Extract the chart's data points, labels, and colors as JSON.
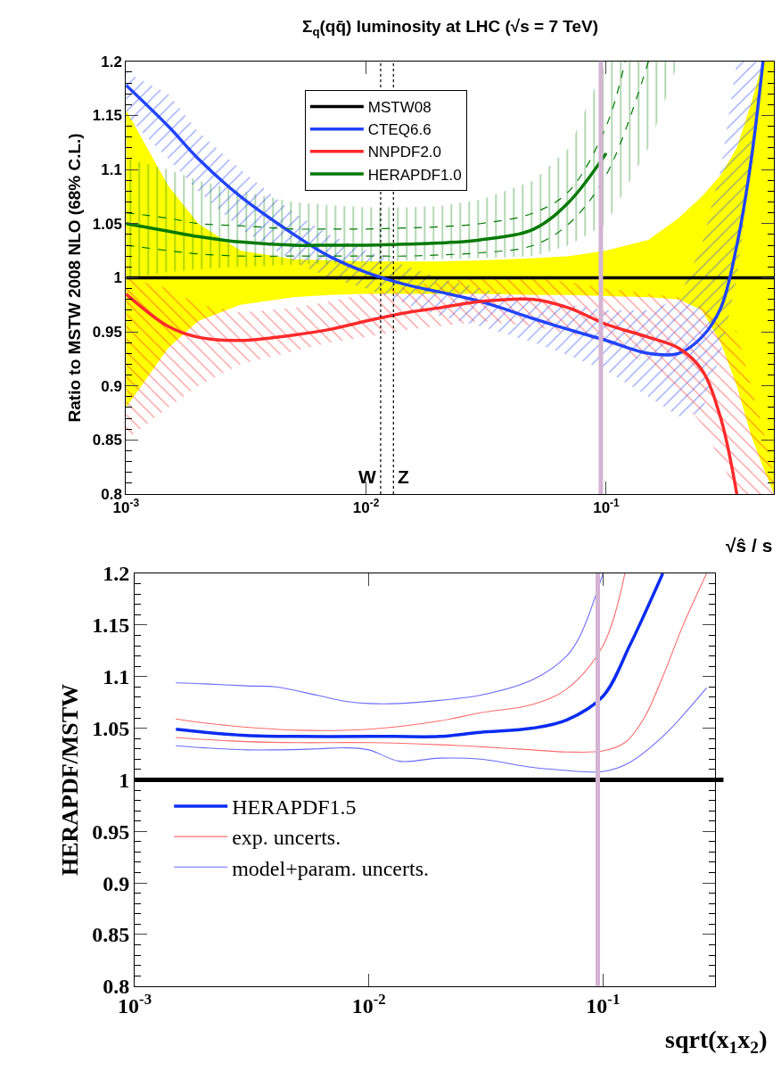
{
  "chart_data": [
    {
      "type": "line",
      "title": "Σ$_{q}$(qq̄) luminosity at LHC (√s = 7 TeV)",
      "xlabel": "√ŝ / s",
      "ylabel": "Ratio to MSTW 2008 NLO (68% C.L.)",
      "log": "x",
      "legend": "top",
      "marker": "none",
      "xlim": [
        0.001,
        0.5
      ],
      "xticks": [
        {
          "value": 0.001,
          "label": "10$^{-3}$"
        },
        {
          "value": 0.01,
          "label": "10$^{-2}$"
        },
        {
          "value": 0.1,
          "label": "10$^{-1}$"
        }
      ],
      "ylim": [
        0.8,
        1.2
      ],
      "yticks": [
        0.8,
        0.85,
        0.9,
        0.95,
        1,
        1.05,
        1.1,
        1.15,
        1.2
      ],
      "x": [
        0.001,
        0.0015,
        0.002,
        0.003,
        0.005,
        0.007,
        0.01,
        0.015,
        0.02,
        0.03,
        0.05,
        0.07,
        0.1,
        0.15,
        0.2,
        0.25,
        0.3,
        0.35,
        0.4,
        0.45,
        0.5
      ],
      "series": [
        {
          "name": "MSTW08",
          "color": "#000000",
          "values": [
            1,
            1,
            1,
            1,
            1,
            1,
            1,
            1,
            1,
            1,
            1,
            1,
            1,
            1,
            1,
            1,
            1,
            1,
            1,
            1,
            1
          ],
          "upper": [
            1.155,
            1.085,
            1.05,
            1.025,
            1.017,
            1.016,
            1.015,
            1.015,
            1.015,
            1.016,
            1.018,
            1.02,
            1.025,
            1.035,
            1.055,
            1.075,
            1.095,
            1.12,
            1.16,
            1.2,
            1.2
          ],
          "lower": [
            0.88,
            0.935,
            0.96,
            0.975,
            0.982,
            0.984,
            0.985,
            0.985,
            0.985,
            0.985,
            0.984,
            0.984,
            0.983,
            0.982,
            0.98,
            0.97,
            0.94,
            0.9,
            0.855,
            0.825,
            0.8
          ]
        },
        {
          "name": "CTEQ6.6",
          "color": "#2244ff",
          "values": [
            1.178,
            1.14,
            1.11,
            1.075,
            1.04,
            1.02,
            1.005,
            0.993,
            0.987,
            0.978,
            0.962,
            0.952,
            0.942,
            0.93,
            0.93,
            0.945,
            0.972,
            1.03,
            1.106,
            1.2,
            null
          ],
          "upper": [
            1.19,
            1.17,
            1.135,
            1.1,
            1.06,
            1.04,
            1.025,
            1.01,
            1.0,
            0.99,
            0.98,
            0.975,
            0.97,
            0.97,
            0.98,
            1.03,
            1.1,
            1.2,
            1.2,
            1.2,
            null
          ],
          "lower": [
            1.15,
            1.11,
            1.08,
            1.045,
            1.015,
            1.0,
            0.99,
            0.975,
            0.965,
            0.955,
            0.94,
            0.928,
            0.914,
            0.89,
            0.872,
            0.875,
            0.93,
            1.0,
            1.1,
            1.2,
            null
          ]
        },
        {
          "name": "NNPDF2.0",
          "color": "#ff2a2a",
          "values": [
            0.985,
            0.955,
            0.945,
            0.942,
            0.947,
            0.952,
            0.96,
            0.968,
            0.972,
            0.978,
            0.98,
            0.972,
            0.957,
            0.945,
            0.935,
            0.915,
            0.87,
            0.8,
            null,
            null,
            null
          ],
          "upper": [
            1.0,
            0.99,
            0.975,
            0.968,
            0.972,
            0.978,
            0.985,
            0.992,
            0.996,
            1.0,
            1.0,
            0.996,
            0.99,
            0.985,
            0.982,
            0.972,
            0.96,
            0.95,
            0.9,
            0.86,
            0.815
          ],
          "lower": [
            0.85,
            0.88,
            0.9,
            0.92,
            0.932,
            0.94,
            0.945,
            0.952,
            0.955,
            0.96,
            0.955,
            0.948,
            0.94,
            0.92,
            0.89,
            0.865,
            0.83,
            0.8,
            0.8,
            0.8,
            0.8
          ]
        },
        {
          "name": "HERAPDF1.0",
          "color": "#007a00",
          "values": [
            1.05,
            1.043,
            1.038,
            1.033,
            1.03,
            1.03,
            1.03,
            1.031,
            1.032,
            1.035,
            1.045,
            1.07,
            1.115,
            null,
            null,
            null,
            null,
            null,
            null,
            null,
            null
          ],
          "upper": [
            1.11,
            1.1,
            1.09,
            1.08,
            1.07,
            1.067,
            1.065,
            1.065,
            1.066,
            1.072,
            1.09,
            1.12,
            1.2,
            1.2,
            1.2,
            null,
            null,
            null,
            null,
            null,
            null
          ],
          "lower": [
            1.0,
            1.005,
            1.008,
            1.01,
            1.012,
            1.013,
            1.014,
            1.016,
            1.017,
            1.018,
            1.02,
            1.03,
            1.05,
            1.12,
            1.2,
            null,
            null,
            null,
            null,
            null,
            null
          ]
        },
        {
          "color": "#007a00",
          "line_style": "dashed",
          "x": [
            0.001,
            0.0015,
            0.002,
            0.003,
            0.005,
            0.007,
            0.01,
            0.015,
            0.02,
            0.03,
            0.05,
            0.07,
            0.1,
            0.12
          ],
          "values": [
            1.06,
            1.055,
            1.05,
            1.048,
            1.045,
            1.045,
            1.045,
            1.046,
            1.047,
            1.05,
            1.06,
            1.08,
            1.14,
            1.2
          ]
        },
        {
          "color": "#007a00",
          "line_style": "dashed",
          "values": [
            1.03,
            1.025,
            1.022,
            1.02,
            1.02,
            1.02,
            1.02,
            1.02,
            1.021,
            1.023,
            1.03,
            1.05,
            1.095,
            1.2,
            null,
            null,
            null,
            null,
            null,
            null,
            null
          ]
        }
      ],
      "ref_lines": [
        {
          "axis": "x",
          "value": 0.0115,
          "label": "W",
          "color": "#000000",
          "line_style": "dotted"
        },
        {
          "axis": "x",
          "value": 0.013,
          "label": "Z",
          "color": "#000000",
          "line_style": "dotted"
        },
        {
          "axis": "x",
          "value": 0.095,
          "color": "#d4b4d2"
        }
      ]
    },
    {
      "type": "line",
      "xlabel": "sqrt(x$_{1}$x$_{2}$)",
      "ylabel": "HERAPDF/MSTW",
      "log": "x",
      "legend": "bottom left",
      "marker": "none",
      "xlim": [
        0.001,
        0.3
      ],
      "xticks": [
        {
          "value": 0.001,
          "label": "10$^{-3}$"
        },
        {
          "value": 0.01,
          "label": "10$^{-2}$"
        },
        {
          "value": 0.1,
          "label": "10$^{-1}$"
        }
      ],
      "ylim": [
        0.8,
        1.2
      ],
      "yticks": [
        0.8,
        0.85,
        0.9,
        0.95,
        1,
        1.05,
        1.1,
        1.15,
        1.2
      ],
      "series": [
        {
          "name": "HERAPDF1.5",
          "color": "#0a2cf0",
          "x": [
            0.0015,
            0.002,
            0.003,
            0.005,
            0.01,
            0.013,
            0.02,
            0.03,
            0.05,
            0.07,
            0.1,
            0.13,
            0.15,
            0.18
          ],
          "values": [
            1.049,
            1.046,
            1.043,
            1.042,
            1.042,
            1.042,
            1.042,
            1.046,
            1.05,
            1.058,
            1.081,
            1.13,
            1.16,
            1.2
          ]
        },
        {
          "name": "exp. uncerts.",
          "color": "#ff6a6a",
          "x": [
            0.0015,
            0.002,
            0.003,
            0.005,
            0.01,
            0.02,
            0.03,
            0.05,
            0.07,
            0.1,
            0.124
          ],
          "values": [
            1.059,
            1.055,
            1.051,
            1.048,
            1.049,
            1.057,
            1.065,
            1.073,
            1.088,
            1.13,
            1.2
          ]
        },
        {
          "color": "#ff6a6a",
          "x": [
            0.0015,
            0.002,
            0.003,
            0.005,
            0.01,
            0.02,
            0.03,
            0.05,
            0.07,
            0.1,
            0.124,
            0.15,
            0.18,
            0.22,
            0.277
          ],
          "values": [
            1.041,
            1.039,
            1.037,
            1.036,
            1.036,
            1.034,
            1.032,
            1.029,
            1.027,
            1.028,
            1.036,
            1.06,
            1.1,
            1.15,
            1.2
          ]
        },
        {
          "name": "model+param. uncerts.",
          "color": "#6a6aff",
          "x": [
            0.0015,
            0.002,
            0.003,
            0.004,
            0.006,
            0.008,
            0.01,
            0.0135,
            0.02,
            0.03,
            0.05,
            0.07,
            0.08,
            0.1
          ],
          "values": [
            1.094,
            1.093,
            1.091,
            1.09,
            1.082,
            1.076,
            1.074,
            1.074,
            1.077,
            1.082,
            1.097,
            1.12,
            1.14,
            1.2
          ]
        },
        {
          "color": "#6a6aff",
          "x": [
            0.0015,
            0.002,
            0.003,
            0.004,
            0.006,
            0.008,
            0.01,
            0.0135,
            0.02,
            0.03,
            0.05,
            0.07,
            0.08,
            0.1,
            0.128,
            0.18,
            0.277
          ],
          "values": [
            1.033,
            1.031,
            1.029,
            1.029,
            1.03,
            1.031,
            1.029,
            1.018,
            1.021,
            1.02,
            1.012,
            1.009,
            1.008,
            1.008,
            1.016,
            1.042,
            1.089
          ]
        }
      ],
      "ref_lines": [
        {
          "axis": "y",
          "value": 1,
          "color": "#000000"
        },
        {
          "axis": "x",
          "value": 0.095,
          "color": "#d4b4d2"
        }
      ]
    }
  ]
}
